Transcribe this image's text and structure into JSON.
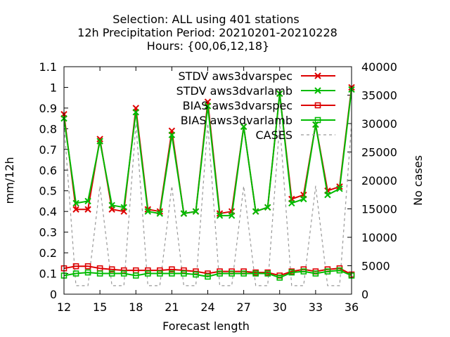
{
  "chart_data": {
    "type": "line",
    "title_lines": [
      "Selection: ALL using   401 stations",
      "12h Precipitation   Period: 20210201-20210228",
      "Hours: {00,06,12,18}"
    ],
    "xlabel": "Forecast length",
    "ylabel": "mm/12h",
    "y2label": "No cases",
    "xlim": [
      12,
      36
    ],
    "ylim": [
      0,
      1.1
    ],
    "y2lim": [
      0,
      40000
    ],
    "xticks": [
      "12",
      "15",
      "18",
      "21",
      "24",
      "27",
      "30",
      "33",
      "36"
    ],
    "yticks": [
      "0",
      "0.1",
      "0.2",
      "0.3",
      "0.4",
      "0.5",
      "0.6",
      "0.7",
      "0.8",
      "0.9",
      "1",
      "1.1"
    ],
    "y2ticks": [
      "0",
      "5000",
      "10000",
      "15000",
      "20000",
      "25000",
      "30000",
      "35000",
      "40000"
    ],
    "x": [
      12,
      13,
      14,
      15,
      16,
      17,
      18,
      19,
      20,
      21,
      22,
      23,
      24,
      25,
      26,
      27,
      28,
      29,
      30,
      31,
      32,
      33,
      34,
      35,
      36
    ],
    "series": [
      {
        "name": "STDV aws3dvarspec",
        "color": "#dd0000",
        "marker": "x",
        "axis": "y",
        "values": [
          0.87,
          0.41,
          0.41,
          0.75,
          0.41,
          0.4,
          0.9,
          0.41,
          0.4,
          0.79,
          0.39,
          0.4,
          0.93,
          0.39,
          0.4,
          0.81,
          0.4,
          0.42,
          0.97,
          0.46,
          0.48,
          0.82,
          0.5,
          0.52,
          1.0
        ]
      },
      {
        "name": "STDV aws3dvarlamb",
        "color": "#00bb00",
        "marker": "x",
        "axis": "y",
        "values": [
          0.85,
          0.44,
          0.45,
          0.74,
          0.43,
          0.42,
          0.88,
          0.4,
          0.39,
          0.77,
          0.39,
          0.4,
          0.91,
          0.38,
          0.38,
          0.81,
          0.4,
          0.42,
          0.97,
          0.44,
          0.46,
          0.82,
          0.48,
          0.51,
          0.99
        ]
      },
      {
        "name": "BIAS aws3dvarspec",
        "color": "#dd0000",
        "marker": "square",
        "axis": "y",
        "values": [
          0.125,
          0.135,
          0.135,
          0.125,
          0.12,
          0.115,
          0.115,
          0.115,
          0.115,
          0.12,
          0.115,
          0.11,
          0.1,
          0.11,
          0.11,
          0.11,
          0.105,
          0.105,
          0.09,
          0.11,
          0.12,
          0.11,
          0.12,
          0.125,
          0.095
        ]
      },
      {
        "name": "BIAS aws3dvarlamb",
        "color": "#00bb00",
        "marker": "square",
        "axis": "y",
        "values": [
          0.09,
          0.1,
          0.105,
          0.1,
          0.1,
          0.1,
          0.09,
          0.1,
          0.1,
          0.1,
          0.1,
          0.095,
          0.085,
          0.1,
          0.1,
          0.1,
          0.1,
          0.1,
          0.08,
          0.105,
          0.11,
          0.1,
          0.11,
          0.115,
          0.09
        ]
      },
      {
        "name": "CASES",
        "color": "#999999",
        "marker": "none",
        "axis": "y2",
        "dashed": true,
        "values": [
          30000,
          1500,
          1500,
          19000,
          1500,
          1500,
          30000,
          1500,
          1500,
          19000,
          1500,
          1500,
          30000,
          1500,
          1500,
          19000,
          1500,
          1500,
          30000,
          1500,
          1500,
          19000,
          1500,
          1500,
          30000
        ]
      }
    ],
    "legend_position": "top-right"
  }
}
